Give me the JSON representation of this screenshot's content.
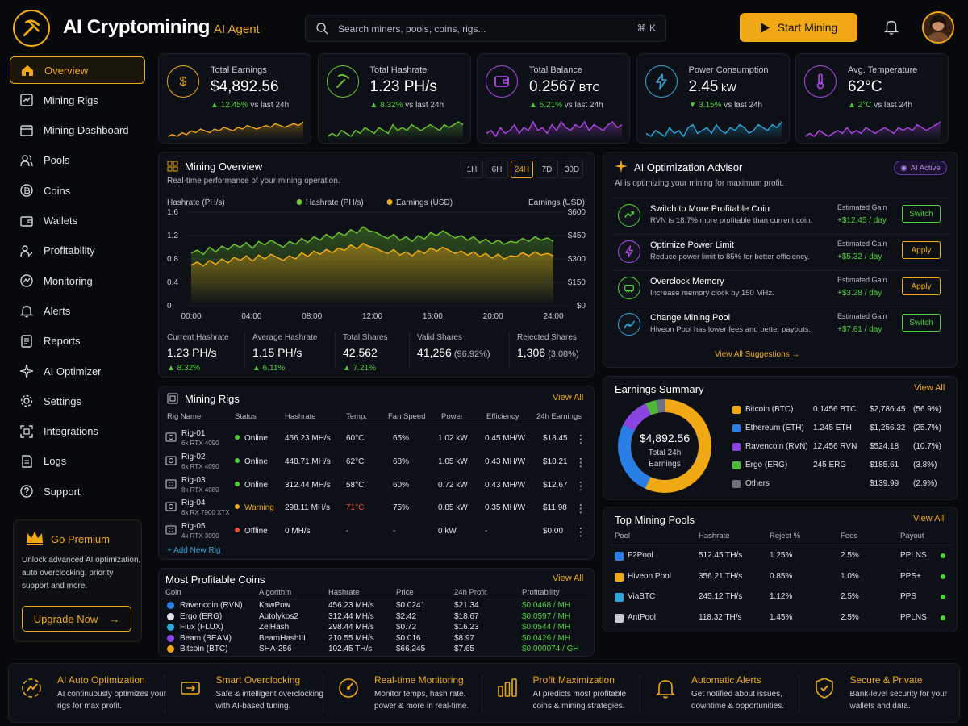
{
  "header": {
    "title": "AI Cryptomining",
    "subtitle": "AI Agent",
    "search_placeholder": "Search miners, pools, coins, rigs...",
    "shortcut": "⌘ K",
    "start_label": "Start Mining"
  },
  "sidebar": {
    "items": [
      {
        "label": "Overview",
        "icon": "home-icon",
        "active": true
      },
      {
        "label": "Mining Rigs",
        "icon": "rig-icon"
      },
      {
        "label": "Mining Dashboard",
        "icon": "dashboard-icon"
      },
      {
        "label": "Pools",
        "icon": "users-icon"
      },
      {
        "label": "Coins",
        "icon": "coin-icon"
      },
      {
        "label": "Wallets",
        "icon": "wallet-icon"
      },
      {
        "label": "Profitability",
        "icon": "profit-icon"
      },
      {
        "label": "Monitoring",
        "icon": "monitor-icon"
      },
      {
        "label": "Alerts",
        "icon": "bell-icon"
      },
      {
        "label": "Reports",
        "icon": "report-icon"
      },
      {
        "label": "AI Optimizer",
        "icon": "sparkle-icon"
      },
      {
        "label": "Settings",
        "icon": "gear-icon"
      },
      {
        "label": "Integrations",
        "icon": "integration-icon"
      },
      {
        "label": "Logs",
        "icon": "log-icon"
      },
      {
        "label": "Support",
        "icon": "help-icon"
      }
    ],
    "premium": {
      "title": "Go Premium",
      "text": "Unlock advanced AI optimization, auto overclocking, priority support and more.",
      "button": "Upgrade Now"
    }
  },
  "stats": [
    {
      "label": "Total Earnings",
      "value": "$4,892.56",
      "unit": "",
      "change": "▲ 12.45%",
      "suffix": " vs last 24h",
      "color": "#f0a914",
      "trend": "up",
      "spark": [
        3,
        4,
        3,
        5,
        4,
        6,
        5,
        7,
        6,
        5,
        7,
        6,
        8,
        7,
        6,
        8,
        7,
        9,
        8,
        7,
        8,
        9,
        8,
        10,
        9,
        8,
        9,
        10,
        9,
        11
      ]
    },
    {
      "label": "Total Hashrate",
      "value": "1.23 PH/s",
      "unit": "",
      "change": "▲ 8.32%",
      "suffix": " vs last 24h",
      "color": "#6cc42f",
      "trend": "up",
      "spark": [
        4,
        5,
        4,
        6,
        5,
        4,
        6,
        5,
        7,
        6,
        5,
        7,
        6,
        5,
        8,
        6,
        7,
        6,
        8,
        7,
        6,
        7,
        8,
        7,
        6,
        8,
        7,
        8,
        9,
        8
      ]
    },
    {
      "label": "Total Balance",
      "value": "0.2567",
      "unit": " BTC",
      "change": "▲ 5.21%",
      "suffix": " vs last 24h",
      "color": "#b046e8",
      "trend": "up",
      "spark": [
        5,
        6,
        4,
        7,
        5,
        6,
        8,
        5,
        7,
        6,
        9,
        6,
        7,
        5,
        8,
        6,
        9,
        7,
        6,
        8,
        7,
        9,
        6,
        8,
        7,
        6,
        8,
        9,
        7,
        8
      ]
    },
    {
      "label": "Power Consumption",
      "value": "2.45",
      "unit": " kW",
      "change": "▼ 3.15%",
      "suffix": " vs last 24h",
      "color": "#2fa6d8",
      "trend": "down",
      "spark": [
        5,
        4,
        6,
        5,
        4,
        7,
        5,
        6,
        4,
        7,
        8,
        5,
        6,
        7,
        5,
        8,
        6,
        5,
        7,
        6,
        8,
        7,
        5,
        6,
        8,
        7,
        6,
        8,
        7,
        9
      ]
    },
    {
      "label": "Avg. Temperature",
      "value": "62°C",
      "unit": "",
      "change": "▲ 2°C",
      "suffix": " vs last 24h",
      "color": "#b046e8",
      "trend": "up",
      "spark": [
        4,
        5,
        4,
        6,
        5,
        4,
        5,
        6,
        5,
        7,
        5,
        6,
        5,
        7,
        6,
        5,
        6,
        7,
        6,
        5,
        7,
        6,
        7,
        6,
        8,
        7,
        6,
        7,
        8,
        9
      ]
    }
  ],
  "overview": {
    "title": "Mining Overview",
    "subtitle": "Real-time performance of your mining operation.",
    "ranges": [
      "1H",
      "6H",
      "24H",
      "7D",
      "30D"
    ],
    "active_range": "24H",
    "kpis": [
      {
        "label": "Current Hashrate",
        "value": "1.23 PH/s",
        "extra": "",
        "change": "▲ 8.32%"
      },
      {
        "label": "Average Hashrate",
        "value": "1.15 PH/s",
        "extra": "",
        "change": "▲ 6.11%"
      },
      {
        "label": "Total Shares",
        "value": "42,562",
        "extra": "",
        "change": "▲ 7.21%"
      },
      {
        "label": "Valid Shares",
        "value": "41,256",
        "extra": " (96.92%)",
        "change": ""
      },
      {
        "label": "Rejected Shares",
        "value": "1,306",
        "extra": " (3.08%)",
        "change": ""
      }
    ]
  },
  "chart_data": {
    "type": "area",
    "ylabel": "Hashrate (PH/s)",
    "y2label": "Earnings (USD)",
    "ylim": [
      0,
      1.6
    ],
    "y2lim": [
      0,
      600
    ],
    "yticks": [
      "1.6",
      "1.2",
      "0.8",
      "0.4",
      "0"
    ],
    "y2ticks": [
      "$600",
      "$450",
      "$300",
      "$150",
      "$0"
    ],
    "xticks": [
      "00:00",
      "04:00",
      "08:00",
      "12:00",
      "16:00",
      "20:00",
      "24:00"
    ],
    "legend": "top-center",
    "series": [
      {
        "name": "Hashrate (PH/s)",
        "color": "#6cc42f",
        "values": [
          0.9,
          0.95,
          0.88,
          1.0,
          0.92,
          1.02,
          0.96,
          1.05,
          1.0,
          1.08,
          0.98,
          1.1,
          1.04,
          1.12,
          1.06,
          1.0,
          1.1,
          1.05,
          1.15,
          1.08,
          1.18,
          1.12,
          1.22,
          1.15,
          1.25,
          1.2,
          1.3,
          1.24,
          1.35,
          1.28,
          1.26,
          1.2,
          1.15,
          1.22,
          1.12,
          1.18,
          1.1,
          1.2,
          1.14,
          1.25,
          1.2,
          1.28,
          1.22,
          1.16,
          1.2,
          1.12,
          1.18,
          1.08,
          1.14,
          1.06,
          1.12,
          1.05,
          1.1,
          1.08,
          1.15,
          1.1,
          1.18,
          1.12,
          1.16,
          1.1
        ]
      },
      {
        "name": "Earnings (USD)",
        "color": "#f0a914",
        "values": [
          260,
          280,
          255,
          290,
          265,
          300,
          275,
          310,
          290,
          320,
          285,
          325,
          300,
          330,
          310,
          290,
          320,
          300,
          340,
          315,
          350,
          330,
          360,
          340,
          370,
          355,
          390,
          365,
          400,
          380,
          370,
          350,
          335,
          360,
          325,
          345,
          320,
          355,
          335,
          370,
          350,
          375,
          355,
          335,
          350,
          325,
          345,
          315,
          335,
          305,
          330,
          300,
          320,
          315,
          340,
          320,
          345,
          325,
          335,
          320
        ]
      }
    ]
  },
  "advisor": {
    "title": "AI Optimization Advisor",
    "badge": "AI Active",
    "subtitle": "AI is optimizing your mining for maximum profit.",
    "gain_label": "Estimated Gain",
    "items": [
      {
        "title": "Switch to More Profitable Coin",
        "desc": "RVN is 18.7% more profitable than current coin.",
        "gain": "+$12.45 / day",
        "action": "Switch",
        "style": "g",
        "color": "#4fcf3b"
      },
      {
        "title": "Optimize Power Limit",
        "desc": "Reduce power limit to 85% for better efficiency.",
        "gain": "+$5.32 / day",
        "action": "Apply",
        "style": "y",
        "color": "#b046e8"
      },
      {
        "title": "Overclock Memory",
        "desc": "Increase memory clock by 150 MHz.",
        "gain": "+$3.28 / day",
        "action": "Apply",
        "style": "y",
        "color": "#4fcf3b"
      },
      {
        "title": "Change Mining Pool",
        "desc": "Hiveon Pool has lower fees and better payouts.",
        "gain": "+$7.61 / day",
        "action": "Switch",
        "style": "g",
        "color": "#2fa6d8"
      }
    ],
    "view_all": "View All Suggestions →"
  },
  "rigs": {
    "title": "Mining Rigs",
    "view_all": "View All",
    "add": "+ Add New Rig",
    "columns": [
      "Rig Name",
      "Status",
      "Hashrate",
      "Temp.",
      "Fan Speed",
      "Power",
      "Efficiency",
      "24h Earnings"
    ],
    "rows": [
      {
        "name": "Rig-01",
        "gpu": "6x RTX 4090",
        "status": "Online",
        "status_color": "#4fcf3b",
        "hashrate": "456.23 MH/s",
        "temp": "60°C",
        "temp_color": "#e0e3e7",
        "fan": "65%",
        "power": "1.02 kW",
        "eff": "0.45 MH/W",
        "earn": "$18.45"
      },
      {
        "name": "Rig-02",
        "gpu": "6x RTX 4090",
        "status": "Online",
        "status_color": "#4fcf3b",
        "hashrate": "448.71 MH/s",
        "temp": "62°C",
        "temp_color": "#e0e3e7",
        "fan": "68%",
        "power": "1.05 kW",
        "eff": "0.43 MH/W",
        "earn": "$18.21"
      },
      {
        "name": "Rig-03",
        "gpu": "8x RTX 4080",
        "status": "Online",
        "status_color": "#4fcf3b",
        "hashrate": "312.44 MH/s",
        "temp": "58°C",
        "temp_color": "#e0e3e7",
        "fan": "60%",
        "power": "0.72 kW",
        "eff": "0.43 MH/W",
        "earn": "$12.67"
      },
      {
        "name": "Rig-04",
        "gpu": "6x RX 7900 XTX",
        "status": "Warning",
        "status_color": "#f0a914",
        "hashrate": "298.11 MH/s",
        "temp": "71°C",
        "temp_color": "#ee4a3a",
        "fan": "75%",
        "power": "0.85 kW",
        "eff": "0.35 MH/W",
        "earn": "$11.98"
      },
      {
        "name": "Rig-05",
        "gpu": "4x RTX 3090",
        "status": "Offline",
        "status_color": "#ee4a3a",
        "hashrate": "0 MH/s",
        "temp": "-",
        "temp_color": "#e0e3e7",
        "fan": "-",
        "power": "0 kW",
        "eff": "-",
        "earn": "$0.00"
      }
    ]
  },
  "earnings": {
    "title": "Earnings Summary",
    "view_all": "View All",
    "center_value": "$4,892.56",
    "center_label": "Total 24h Earnings",
    "rows": [
      {
        "name": "Bitcoin (BTC)",
        "amount": "0.1456 BTC",
        "usd": "$2,786.45",
        "pct": "(56.9%)",
        "share": 56.9,
        "color": "#f0a914"
      },
      {
        "name": "Ethereum (ETH)",
        "amount": "1.245 ETH",
        "usd": "$1,256.32",
        "pct": "(25.7%)",
        "share": 25.7,
        "color": "#2a7fe6"
      },
      {
        "name": "Ravencoin (RVN)",
        "amount": "12,456 RVN",
        "usd": "$524.18",
        "pct": "(10.7%)",
        "share": 10.7,
        "color": "#8a45e0"
      },
      {
        "name": "Ergo (ERG)",
        "amount": "245 ERG",
        "usd": "$185.61",
        "pct": "(3.8%)",
        "share": 3.8,
        "color": "#4fb83a"
      },
      {
        "name": "Others",
        "amount": "",
        "usd": "$139.99",
        "pct": "(2.9%)",
        "share": 2.9,
        "color": "#6b7380"
      }
    ]
  },
  "pools": {
    "title": "Top Mining Pools",
    "view_all": "View All",
    "columns": [
      "Pool",
      "Hashrate",
      "Reject %",
      "Fees",
      "Payout"
    ],
    "rows": [
      {
        "name": "F2Pool",
        "hashrate": "512.45 TH/s",
        "reject": "1.25%",
        "fees": "2.5%",
        "payout": "PPLNS",
        "color": "#2a7fe6"
      },
      {
        "name": "Hiveon Pool",
        "hashrate": "356.21 TH/s",
        "reject": "0.85%",
        "fees": "1.0%",
        "payout": "PPS+",
        "color": "#f0a914"
      },
      {
        "name": "ViaBTC",
        "hashrate": "245.12 TH/s",
        "reject": "1.12%",
        "fees": "2.5%",
        "payout": "PPS",
        "color": "#2fa6d8"
      },
      {
        "name": "AntPool",
        "hashrate": "118.32 TH/s",
        "reject": "1.45%",
        "fees": "2.5%",
        "payout": "PPLNS",
        "color": "#c9cdd3"
      }
    ]
  },
  "coins": {
    "title": "Most Profitable Coins",
    "view_all": "View All",
    "columns": [
      "Coin",
      "Algorithm",
      "Hashrate",
      "Price",
      "24h Profit",
      "Profitability"
    ],
    "rows": [
      {
        "name": "Ravencoin (RVN)",
        "algo": "KawPow",
        "hashrate": "456.23 MH/s",
        "price": "$0.0241",
        "profit": "$21.34",
        "prof": "$0.0468 / MH",
        "color": "#2a7fe6"
      },
      {
        "name": "Ergo (ERG)",
        "algo": "Autolykos2",
        "hashrate": "312.44 MH/s",
        "price": "$2.42",
        "profit": "$18.67",
        "prof": "$0.0597 / MH",
        "color": "#e0e3e7"
      },
      {
        "name": "Flux (FLUX)",
        "algo": "ZelHash",
        "hashrate": "298.44 MH/s",
        "price": "$0.72",
        "profit": "$16.23",
        "prof": "$0.0544 / MH",
        "color": "#2fa6d8"
      },
      {
        "name": "Beam (BEAM)",
        "algo": "BeamHashIII",
        "hashrate": "210.55 MH/s",
        "price": "$0.016",
        "profit": "$8.97",
        "prof": "$0.0426 / MH",
        "color": "#8a45e0"
      },
      {
        "name": "Bitcoin (BTC)",
        "algo": "SHA-256",
        "hashrate": "102.45 TH/s",
        "price": "$66,245",
        "profit": "$7.65",
        "prof": "$0.000074 / GH",
        "color": "#f0a914"
      }
    ]
  },
  "features": [
    {
      "title": "AI Auto Optimization",
      "desc": "AI continuously optimizes your rigs for max profit.",
      "icon": "ai-optimize-icon"
    },
    {
      "title": "Smart Overclocking",
      "desc": "Safe & intelligent overclocking with AI-based tuning.",
      "icon": "overclock-icon"
    },
    {
      "title": "Real-time Monitoring",
      "desc": "Monitor temps, hash rate, power & more in real-time.",
      "icon": "gauge-icon"
    },
    {
      "title": "Profit Maximization",
      "desc": "AI predicts most profitable coins & mining strategies.",
      "icon": "bars-icon"
    },
    {
      "title": "Automatic Alerts",
      "desc": "Get notified about issues, downtime & opportunities.",
      "icon": "alert-bell-icon"
    },
    {
      "title": "Secure & Private",
      "desc": "Bank-level security for your wallets and data.",
      "icon": "shield-icon"
    }
  ]
}
